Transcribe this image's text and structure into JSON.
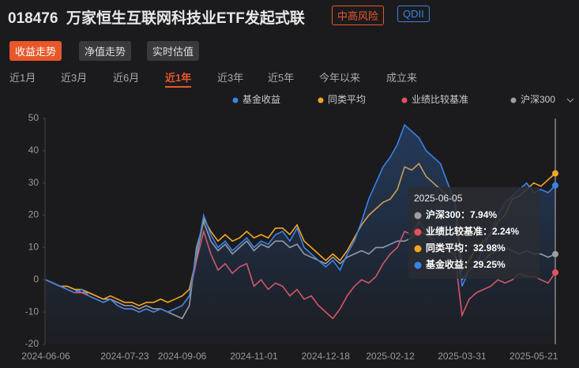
{
  "header": {
    "code": "018476",
    "name": "万家恒生互联网科技业ETF发起式联",
    "tags": [
      "中高风险",
      "QDII"
    ]
  },
  "tabs": [
    "收益走势",
    "净值走势",
    "实时估值"
  ],
  "periods": [
    "近1月",
    "近3月",
    "近6月",
    "近1年",
    "近3年",
    "近5年",
    "今年以来",
    "成立来"
  ],
  "chart_data": {
    "type": "line",
    "categories": [
      "2024-06-06",
      null,
      null,
      null,
      null,
      null,
      null,
      null,
      null,
      null,
      null,
      "2024-07-23",
      null,
      null,
      null,
      null,
      null,
      null,
      null,
      "2024-09-06",
      null,
      null,
      null,
      null,
      null,
      null,
      null,
      null,
      null,
      "2024-11-01",
      null,
      null,
      null,
      null,
      null,
      null,
      null,
      null,
      null,
      "2024-12-18",
      null,
      null,
      null,
      null,
      null,
      null,
      null,
      null,
      "2025-02-12",
      null,
      null,
      null,
      null,
      null,
      null,
      null,
      null,
      null,
      "2025-03-31",
      null,
      null,
      null,
      null,
      null,
      null,
      null,
      null,
      null,
      "2025-05-21",
      null,
      null,
      null
    ],
    "ylim": [
      -20,
      50
    ],
    "yticks": [
      -20,
      -10,
      0,
      10,
      20,
      30,
      40,
      50
    ],
    "grid": false,
    "series": [
      {
        "name": "基金收益",
        "color": "#3a83e6",
        "values": [
          0,
          -1,
          -2,
          -3,
          -4,
          -3,
          -5,
          -6,
          -7,
          -6,
          -8,
          -9,
          -9,
          -10,
          -9,
          -10,
          -9,
          -10,
          -9,
          -8,
          -5,
          8,
          20,
          14,
          10,
          12,
          9,
          11,
          13,
          10,
          12,
          11,
          14,
          15,
          12,
          16,
          10,
          8,
          6,
          4,
          6,
          3,
          8,
          12,
          18,
          25,
          30,
          35,
          38,
          42,
          48,
          46,
          44,
          40,
          38,
          36,
          30,
          24,
          -2,
          3,
          5,
          10,
          15,
          20,
          24,
          26,
          28,
          30,
          27,
          28,
          27,
          29.25
        ]
      },
      {
        "name": "同类平均",
        "color": "#f5a623",
        "values": [
          0,
          -1,
          -2,
          -2,
          -3,
          -3,
          -4,
          -5,
          -6,
          -5,
          -6,
          -7,
          -7,
          -8,
          -7,
          -7,
          -6,
          -7,
          -6,
          -5,
          -3,
          7,
          19,
          15,
          12,
          14,
          12,
          13,
          15,
          13,
          14,
          13,
          16,
          16,
          14,
          17,
          12,
          10,
          8,
          6,
          8,
          6,
          9,
          13,
          17,
          20,
          22,
          24,
          25,
          28,
          35,
          34,
          36,
          32,
          30,
          28,
          26,
          25,
          3,
          6,
          10,
          12,
          14,
          18,
          20,
          25,
          26,
          28,
          30,
          29,
          31,
          32.98
        ]
      },
      {
        "name": "业绩比较基准",
        "color": "#e5525b",
        "values": [
          0,
          -1,
          -2,
          -3,
          -4,
          -4,
          -5,
          -6,
          -7,
          -6,
          -8,
          -9,
          -9,
          -10,
          -9,
          -10,
          -9,
          -10,
          -9,
          -8,
          -5,
          6,
          15,
          8,
          3,
          5,
          2,
          4,
          5,
          -2,
          0,
          -3,
          -1,
          -2,
          -5,
          -3,
          -6,
          -5,
          -8,
          -10,
          -12,
          -9,
          -5,
          -2,
          0,
          -1,
          1,
          5,
          8,
          10,
          15,
          14,
          18,
          15,
          12,
          10,
          9,
          8,
          -11,
          -6,
          -4,
          -3,
          -2,
          0,
          -1,
          0,
          2,
          1,
          1,
          0,
          -1,
          2.24
        ]
      },
      {
        "name": "沪深300",
        "color": "#9e9e9e",
        "values": [
          0,
          -1,
          -2,
          -2,
          -3,
          -4,
          -4,
          -5,
          -6,
          -6,
          -7,
          -8,
          -8,
          -9,
          -8,
          -9,
          -9,
          -10,
          -11,
          -12,
          -8,
          10,
          18,
          12,
          9,
          11,
          8,
          10,
          12,
          9,
          11,
          10,
          12,
          12,
          10,
          11,
          8,
          7,
          6,
          5,
          7,
          5,
          7,
          8,
          9,
          8,
          10,
          10,
          11,
          12,
          12,
          13,
          15,
          14,
          12,
          10,
          9,
          8,
          0,
          3,
          5,
          6,
          8,
          9,
          10,
          9,
          8,
          9,
          8,
          8,
          7,
          7.94
        ]
      }
    ],
    "tooltip": {
      "title": "2025-06-05",
      "items": [
        "沪深300：7.94%",
        "业绩比较基准：2.24%",
        "同类平均：32.98%",
        "基金收益：29.25%"
      ]
    }
  }
}
